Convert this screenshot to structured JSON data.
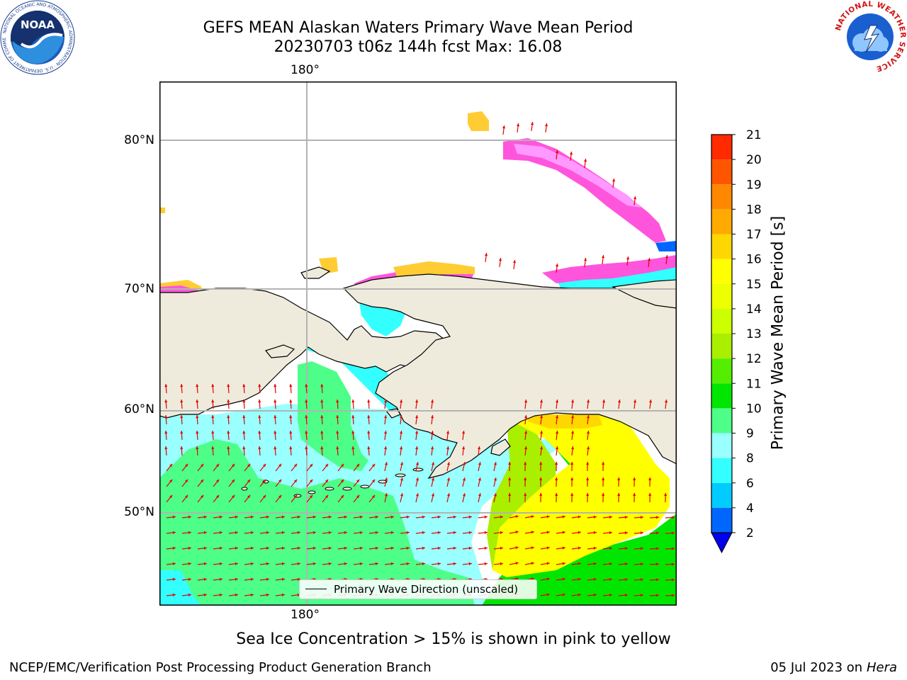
{
  "title": {
    "line1": "GEFS MEAN Alaskan Waters Primary Wave Mean Period",
    "line2": "20230703 t06z 144h fcst   Max: 16.08"
  },
  "logos": {
    "noaa": {
      "text": "NOAA",
      "ring_text": "NATIONAL OCEANIC AND ATMOSPHERIC ADMINISTRATION · U.S. DEPARTMENT OF COMMERCE"
    },
    "nws": {
      "ring_text": "NATIONAL WEATHER SERVICE"
    }
  },
  "map": {
    "lon_label_top": "180°",
    "lon_label_bottom": "180°",
    "lat_labels": [
      "80°N",
      "70°N",
      "60°N",
      "50°N"
    ],
    "legend": "Primary Wave Direction (unscaled)",
    "land_color": "#efebdc",
    "vector_color": "#e60000"
  },
  "colorbar": {
    "label": "Primary Wave Mean Period [s]",
    "ticks": [
      "2",
      "4",
      "6",
      "8",
      "9",
      "10",
      "11",
      "12",
      "13",
      "14",
      "15",
      "16",
      "17",
      "18",
      "19",
      "20",
      "21"
    ],
    "colors": [
      "#0066ff",
      "#00ccff",
      "#33ffff",
      "#99ffff",
      "#4dff88",
      "#00e600",
      "#55ee00",
      "#aaee00",
      "#ccff00",
      "#eeff00",
      "#ffff00",
      "#ffd700",
      "#ffaa00",
      "#ff8800",
      "#ff5500",
      "#ff2a00"
    ],
    "extend_color": "#0000ee"
  },
  "ice_note": "Sea Ice Concentration > 15% is shown in pink to yellow",
  "footer": {
    "left": "NCEP/EMC/Verification Post Processing Product Generation Branch",
    "right_date": "05 Jul 2023 on",
    "right_machine": "Hera"
  }
}
